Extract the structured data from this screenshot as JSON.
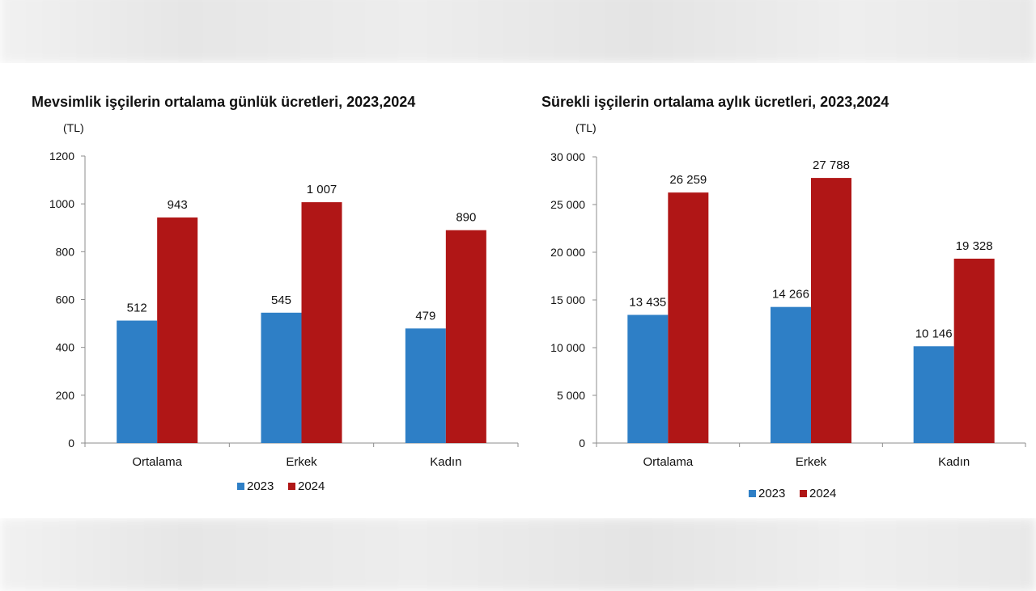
{
  "colors": {
    "series_2023": "#2e7fc6",
    "series_2024": "#b01616",
    "axis": "#8c8c8c",
    "text": "#111111"
  },
  "chart_data": [
    {
      "type": "bar",
      "title": "Mevsimlik işçilerin ortalama günlük ücretleri, 2023,2024",
      "unit_label": "(TL)",
      "categories": [
        "Ortalama",
        "Erkek",
        "Kadın"
      ],
      "series": [
        {
          "name": "2023",
          "values": [
            512,
            545,
            479
          ],
          "labels": [
            "512",
            "545",
            "479"
          ]
        },
        {
          "name": "2024",
          "values": [
            943,
            1007,
            890
          ],
          "labels": [
            "943",
            "1 007",
            "890"
          ]
        }
      ],
      "ylim": [
        0,
        1200
      ],
      "yticks": [
        0,
        200,
        400,
        600,
        800,
        1000,
        1200
      ],
      "ytick_labels": [
        "0",
        "200",
        "400",
        "600",
        "800",
        "1000",
        "1200"
      ],
      "legend_position": "bottom",
      "grid": false
    },
    {
      "type": "bar",
      "title": "Sürekli işçilerin ortalama aylık ücretleri, 2023,2024",
      "unit_label": "(TL)",
      "categories": [
        "Ortalama",
        "Erkek",
        "Kadın"
      ],
      "series": [
        {
          "name": "2023",
          "values": [
            13435,
            14266,
            10146
          ],
          "labels": [
            "13 435",
            "14 266",
            "10 146"
          ]
        },
        {
          "name": "2024",
          "values": [
            26259,
            27788,
            19328
          ],
          "labels": [
            "26 259",
            "27 788",
            "19 328"
          ]
        }
      ],
      "ylim": [
        0,
        30000
      ],
      "yticks": [
        0,
        5000,
        10000,
        15000,
        20000,
        25000,
        30000
      ],
      "ytick_labels": [
        "0",
        "5 000",
        "10 000",
        "15 000",
        "20 000",
        "25 000",
        "30 000"
      ],
      "legend_position": "bottom",
      "grid": false
    }
  ]
}
